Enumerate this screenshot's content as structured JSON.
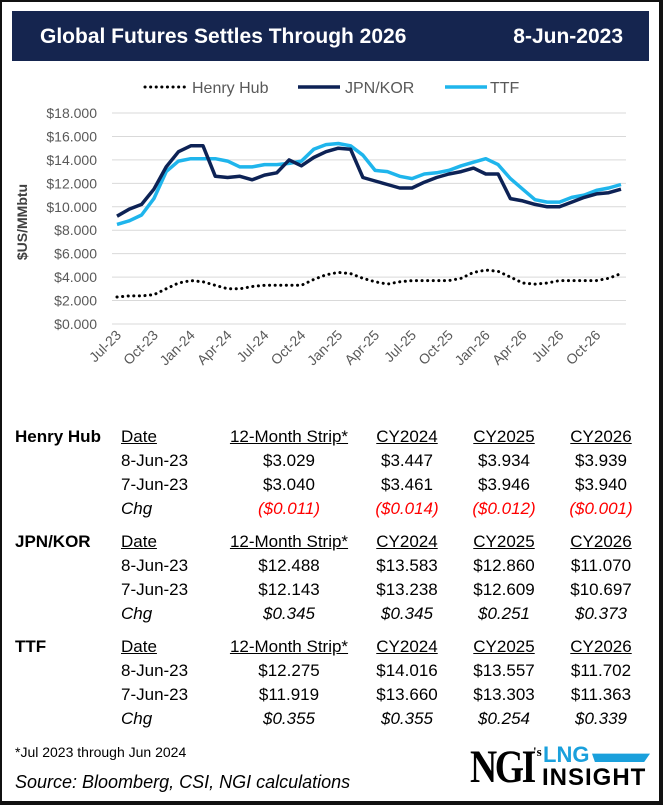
{
  "header": {
    "title": "Global Futures Settles Through 2026",
    "date": "8-Jun-2023"
  },
  "colors": {
    "title_bg": "#15254f",
    "henry_hub": "#000000",
    "jpn_kor": "#0d2255",
    "ttf": "#1fb5ec",
    "negative": "#ff0000"
  },
  "chart_data": {
    "type": "line",
    "ylabel": "$US/MMbtu",
    "ylim": [
      0,
      18
    ],
    "yticks": [
      "$0.000",
      "$2.000",
      "$4.000",
      "$6.000",
      "$8.000",
      "$10.000",
      "$12.000",
      "$14.000",
      "$16.000",
      "$18.000"
    ],
    "xtick_labels": [
      "Jul-23",
      "Oct-23",
      "Jan-24",
      "Apr-24",
      "Jul-24",
      "Oct-24",
      "Jan-25",
      "Apr-25",
      "Jul-25",
      "Oct-25",
      "Jan-26",
      "Apr-26",
      "Jul-26",
      "Oct-26"
    ],
    "x_range": [
      "Jul-23",
      "Dec-26"
    ],
    "grid": "horizontal",
    "legend_placement": "top",
    "series": [
      {
        "name": "Henry Hub",
        "style": "dotted",
        "values": [
          2.3,
          2.4,
          2.4,
          2.5,
          3.0,
          3.5,
          3.7,
          3.6,
          3.3,
          3.0,
          3.0,
          3.2,
          3.3,
          3.3,
          3.3,
          3.3,
          3.8,
          4.2,
          4.4,
          4.3,
          3.9,
          3.6,
          3.4,
          3.6,
          3.7,
          3.7,
          3.7,
          3.7,
          3.9,
          4.4,
          4.6,
          4.5,
          4.0,
          3.5,
          3.4,
          3.5,
          3.7,
          3.7,
          3.7,
          3.7,
          3.9,
          4.3
        ]
      },
      {
        "name": "JPN/KOR",
        "style": "solid",
        "values": [
          9.2,
          9.8,
          10.2,
          11.5,
          13.4,
          14.7,
          15.2,
          15.2,
          12.6,
          12.5,
          12.6,
          12.3,
          12.7,
          12.9,
          14.0,
          13.5,
          14.2,
          14.7,
          15.0,
          14.9,
          12.5,
          12.2,
          11.9,
          11.6,
          11.6,
          12.1,
          12.5,
          12.8,
          13.0,
          13.3,
          12.8,
          12.8,
          10.7,
          10.5,
          10.2,
          10.0,
          10.0,
          10.4,
          10.8,
          11.1,
          11.2,
          11.5
        ]
      },
      {
        "name": "TTF",
        "style": "solid",
        "values": [
          8.5,
          8.8,
          9.3,
          10.7,
          13.0,
          13.9,
          14.1,
          14.1,
          14.1,
          13.9,
          13.4,
          13.4,
          13.6,
          13.6,
          13.7,
          13.9,
          14.9,
          15.3,
          15.4,
          15.2,
          14.4,
          13.1,
          13.0,
          12.6,
          12.4,
          12.8,
          12.9,
          13.1,
          13.5,
          13.8,
          14.1,
          13.6,
          12.4,
          11.5,
          10.6,
          10.4,
          10.4,
          10.8,
          11.0,
          11.4,
          11.6,
          11.9
        ]
      }
    ]
  },
  "tables": [
    {
      "label": "Henry Hub",
      "headers": [
        "Date",
        "12-Month Strip*",
        "CY2024",
        "CY2025",
        "CY2026"
      ],
      "rows": [
        [
          "8-Jun-23",
          "$3.029",
          "$3.447",
          "$3.934",
          "$3.939"
        ],
        [
          "7-Jun-23",
          "$3.040",
          "$3.461",
          "$3.946",
          "$3.940"
        ],
        [
          "Chg",
          "($0.011)",
          "($0.014)",
          "($0.012)",
          "($0.001)"
        ]
      ],
      "chg_negative": true
    },
    {
      "label": "JPN/KOR",
      "headers": [
        "Date",
        "12-Month Strip*",
        "CY2024",
        "CY2025",
        "CY2026"
      ],
      "rows": [
        [
          "8-Jun-23",
          "$12.488",
          "$13.583",
          "$12.860",
          "$11.070"
        ],
        [
          "7-Jun-23",
          "$12.143",
          "$13.238",
          "$12.609",
          "$10.697"
        ],
        [
          "Chg",
          "$0.345",
          "$0.345",
          "$0.251",
          "$0.373"
        ]
      ],
      "chg_negative": false
    },
    {
      "label": "TTF",
      "headers": [
        "Date",
        "12-Month Strip*",
        "CY2024",
        "CY2025",
        "CY2026"
      ],
      "rows": [
        [
          "8-Jun-23",
          "$12.275",
          "$14.016",
          "$13.557",
          "$11.702"
        ],
        [
          "7-Jun-23",
          "$11.919",
          "$13.660",
          "$13.303",
          "$11.363"
        ],
        [
          "Chg",
          "$0.355",
          "$0.355",
          "$0.254",
          "$0.339"
        ]
      ],
      "chg_negative": false
    }
  ],
  "footnote": "*Jul 2023 through Jun 2024",
  "source": "Source: Bloomberg, CSI, NGI calculations",
  "logo": {
    "text": "NGI's LNG INSIGHT"
  }
}
